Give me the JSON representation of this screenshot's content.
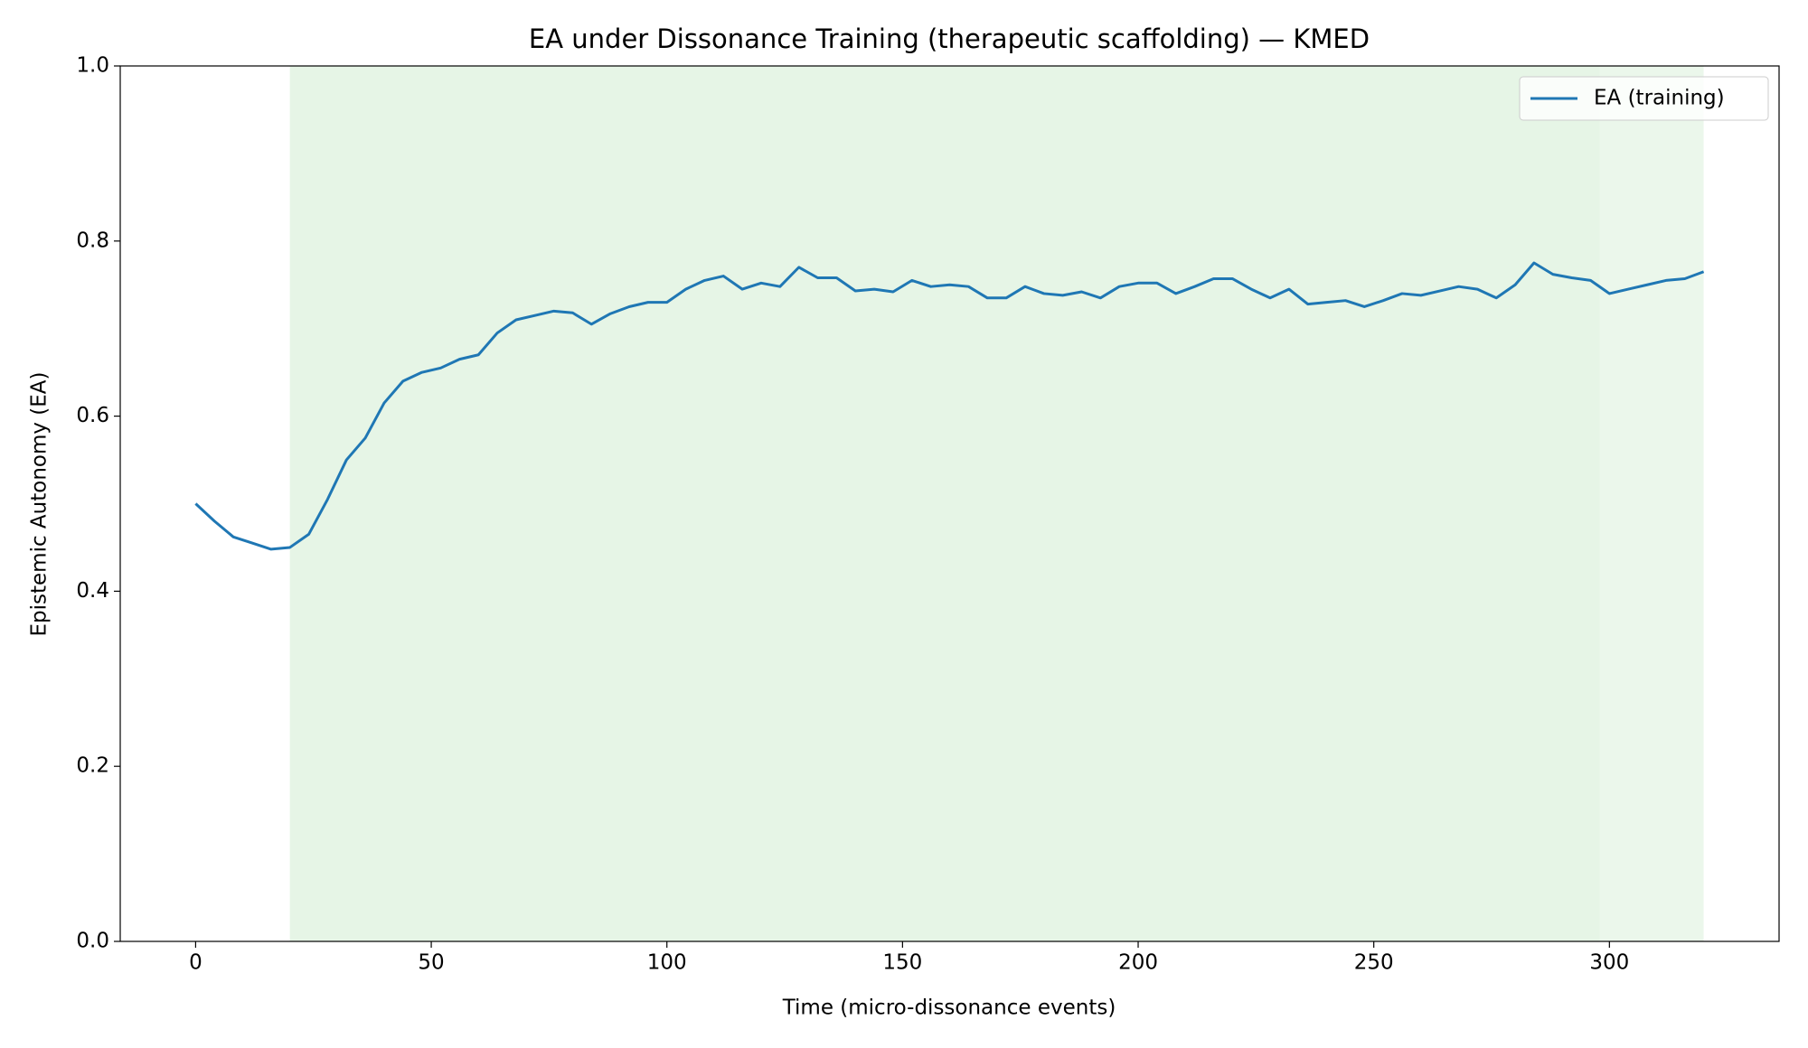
{
  "chart_data": {
    "type": "line",
    "title": "EA under Dissonance Training (therapeutic scaffolding) — KMED",
    "x_label": "Time (micro-dissonance events)",
    "y_label": "Epistemic Autonomy (EA)",
    "x": [
      0,
      4,
      8,
      12,
      16,
      20,
      24,
      28,
      32,
      36,
      40,
      44,
      48,
      52,
      56,
      60,
      64,
      68,
      72,
      76,
      80,
      84,
      88,
      92,
      96,
      100,
      104,
      108,
      112,
      116,
      120,
      124,
      128,
      132,
      136,
      140,
      144,
      148,
      152,
      156,
      160,
      164,
      168,
      172,
      176,
      180,
      184,
      188,
      192,
      196,
      200,
      204,
      208,
      212,
      216,
      220,
      224,
      228,
      232,
      236,
      240,
      244,
      248,
      252,
      256,
      260,
      264,
      268,
      272,
      276,
      280,
      284,
      288,
      292,
      296,
      300,
      304,
      308,
      312,
      316,
      320
    ],
    "series": [
      {
        "name": "EA (training)",
        "color": "#1f77b4",
        "values": [
          0.5,
          0.48,
          0.462,
          0.455,
          0.448,
          0.45,
          0.465,
          0.505,
          0.55,
          0.575,
          0.615,
          0.64,
          0.65,
          0.655,
          0.665,
          0.67,
          0.695,
          0.71,
          0.715,
          0.72,
          0.718,
          0.705,
          0.717,
          0.725,
          0.73,
          0.73,
          0.745,
          0.755,
          0.76,
          0.745,
          0.752,
          0.748,
          0.77,
          0.758,
          0.758,
          0.743,
          0.745,
          0.742,
          0.755,
          0.748,
          0.75,
          0.748,
          0.735,
          0.735,
          0.748,
          0.74,
          0.738,
          0.742,
          0.735,
          0.748,
          0.752,
          0.752,
          0.74,
          0.748,
          0.757,
          0.757,
          0.745,
          0.735,
          0.745,
          0.728,
          0.73,
          0.732,
          0.725,
          0.732,
          0.74,
          0.738,
          0.743,
          0.748,
          0.745,
          0.735,
          0.75,
          0.775,
          0.762,
          0.758,
          0.755,
          0.74,
          0.745,
          0.75,
          0.755,
          0.757,
          0.765
        ]
      }
    ],
    "spans": [
      {
        "start": 20,
        "end": 298,
        "color": "#e6f5e6"
      },
      {
        "start": 298,
        "end": 320,
        "color": "#ebf7eb"
      }
    ],
    "xlim": [
      -16,
      336
    ],
    "ylim": [
      0,
      1
    ],
    "xticks": [
      0,
      50,
      100,
      150,
      200,
      250,
      300
    ],
    "yticks": [
      {
        "value": 0,
        "label": "0.0"
      },
      {
        "value": 0.2,
        "label": "0.2"
      },
      {
        "value": 0.4,
        "label": "0.4"
      },
      {
        "value": 0.6,
        "label": "0.6"
      },
      {
        "value": 0.8,
        "label": "0.8"
      },
      {
        "value": 1,
        "label": "1.0"
      }
    ],
    "legend": "upper right"
  }
}
